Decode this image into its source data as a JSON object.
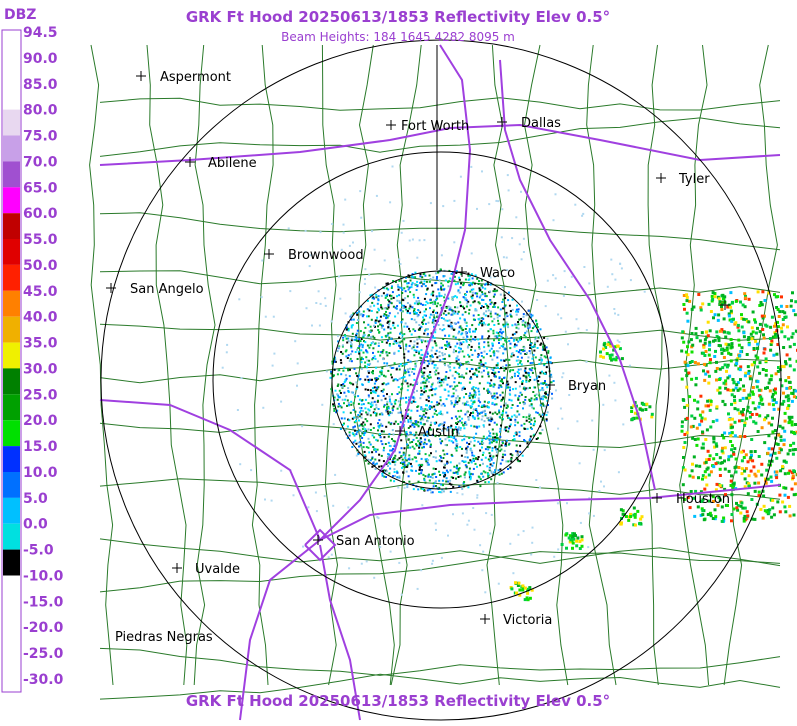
{
  "header": {
    "title": "GRK Ft Hood 20250613/1853 Reflectivity Elev 0.5°",
    "subtitle": "Beam Heights: 184 1645 4282 8095 m"
  },
  "footer": {
    "title": "GRK Ft Hood 20250613/1853 Reflectivity Elev 0.5°"
  },
  "legend": {
    "unit": "DBZ",
    "labels": [
      "94.5",
      "90.0",
      "85.0",
      "80.0",
      "75.0",
      "70.0",
      "65.0",
      "60.0",
      "55.0",
      "50.0",
      "45.0",
      "40.0",
      "35.0",
      "30.0",
      "25.0",
      "20.0",
      "15.0",
      "10.0",
      "5.0",
      "0.0",
      "-5.0",
      "-10.0",
      "-15.0",
      "-20.0",
      "-25.0",
      "-30.0"
    ]
  },
  "cities": [
    {
      "label": "Aspermont"
    },
    {
      "label": "Fort Worth"
    },
    {
      "label": "Dallas"
    },
    {
      "label": "Abilene"
    },
    {
      "label": "Tyler"
    },
    {
      "label": "Brownwood"
    },
    {
      "label": "Waco"
    },
    {
      "label": "San Angelo"
    },
    {
      "label": "Bryan"
    },
    {
      "label": "Austin"
    },
    {
      "label": "Houston"
    },
    {
      "label": "San Antonio"
    },
    {
      "label": "Uvalde"
    },
    {
      "label": "Victoria"
    },
    {
      "label": "Piedras Negras"
    }
  ]
}
